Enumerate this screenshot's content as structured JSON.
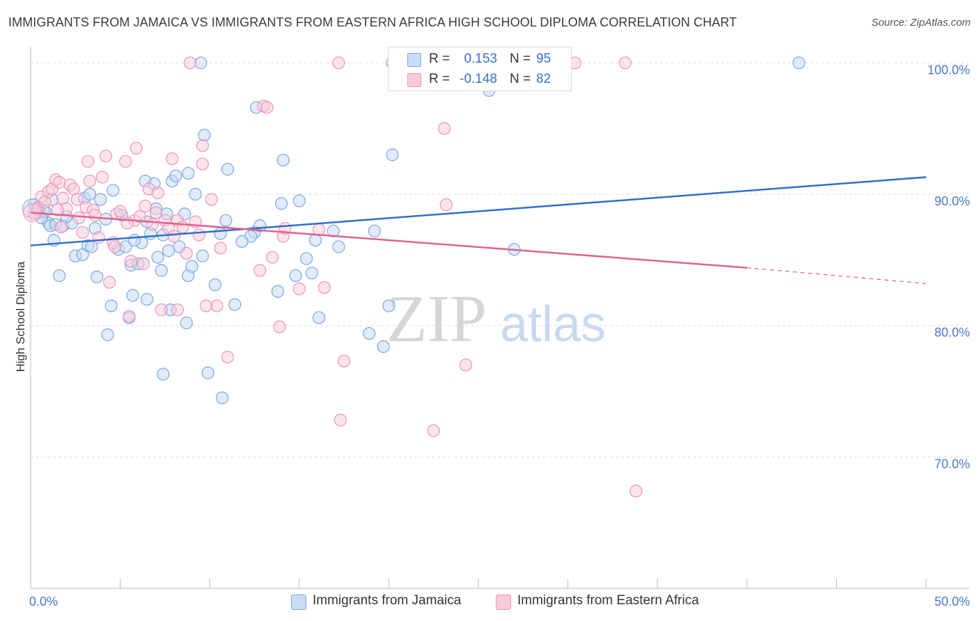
{
  "header": {
    "title": "IMMIGRANTS FROM JAMAICA VS IMMIGRANTS FROM EASTERN AFRICA HIGH SCHOOL DIPLOMA CORRELATION CHART",
    "source": "Source: ZipAtlas.com"
  },
  "legend": {
    "rows": [
      {
        "r_label": "R =",
        "r_value": "0.153",
        "n_label": "N =",
        "n_value": "95"
      },
      {
        "r_label": "R =",
        "r_value": "-0.148",
        "n_label": "N =",
        "n_value": "82"
      }
    ]
  },
  "bottom_legend": {
    "items": [
      {
        "label": "Immigrants from Jamaica"
      },
      {
        "label": "Immigrants from Eastern Africa"
      }
    ]
  },
  "watermark": {
    "zip": "ZIP",
    "atlas": "atlas"
  },
  "colors": {
    "jamaica": "#7aa7e0",
    "jamaica_fill": "#c9dbf5",
    "jamaica_line": "#2f6fc9",
    "eastern_africa": "#ef93b3",
    "eastern_africa_fill": "#f8cbdb",
    "eastern_africa_line": "#e0608f",
    "tick_label": "#4a77c5",
    "grid": "#dddddd"
  },
  "chart_data": {
    "type": "scatter",
    "title": "IMMIGRANTS FROM JAMAICA VS IMMIGRANTS FROM EASTERN AFRICA HIGH SCHOOL DIPLOMA CORRELATION CHART",
    "xlabel": "",
    "ylabel": "High School Diploma",
    "xlim": [
      0,
      50
    ],
    "ylim": [
      60,
      101.5
    ],
    "x_tick_labels": [
      "0.0%",
      "50.0%"
    ],
    "y_ticks": [
      70,
      80,
      90,
      100
    ],
    "y_tick_labels": [
      "70.0%",
      "80.0%",
      "90.0%",
      "100.0%"
    ],
    "grid": true,
    "legend_position": "top-center",
    "series": [
      {
        "name": "Immigrants from Jamaica",
        "r": 0.153,
        "n": 95,
        "trend": {
          "x": [
            0,
            50
          ],
          "y": [
            86.1,
            91.3
          ]
        },
        "points": [
          [
            0.2,
            89.2
          ],
          [
            0.3,
            88.9
          ],
          [
            0.4,
            89.0
          ],
          [
            0.5,
            88.6
          ],
          [
            0.7,
            88.8
          ],
          [
            0.8,
            88.7
          ],
          [
            1.0,
            87.8
          ],
          [
            1.1,
            87.6
          ],
          [
            1.3,
            86.5
          ],
          [
            1.4,
            87.7
          ],
          [
            1.6,
            83.8
          ],
          [
            1.8,
            87.6
          ],
          [
            2.3,
            87.8
          ],
          [
            2.5,
            85.3
          ],
          [
            2.9,
            85.4
          ],
          [
            3.0,
            89.7
          ],
          [
            3.2,
            86.1
          ],
          [
            3.3,
            90.0
          ],
          [
            3.6,
            87.4
          ],
          [
            3.7,
            83.7
          ],
          [
            3.9,
            89.6
          ],
          [
            4.2,
            88.1
          ],
          [
            4.3,
            79.3
          ],
          [
            4.5,
            81.5
          ],
          [
            4.6,
            90.3
          ],
          [
            4.9,
            85.8
          ],
          [
            5.1,
            88.4
          ],
          [
            5.3,
            86.0
          ],
          [
            5.5,
            80.6
          ],
          [
            5.6,
            84.6
          ],
          [
            5.7,
            82.3
          ],
          [
            6.0,
            84.7
          ],
          [
            6.2,
            86.3
          ],
          [
            6.4,
            91.0
          ],
          [
            6.5,
            87.9
          ],
          [
            6.5,
            82.0
          ],
          [
            6.9,
            90.8
          ],
          [
            7.0,
            88.9
          ],
          [
            7.1,
            85.2
          ],
          [
            7.3,
            84.2
          ],
          [
            7.4,
            86.9
          ],
          [
            7.4,
            76.3
          ],
          [
            7.6,
            88.5
          ],
          [
            7.7,
            85.7
          ],
          [
            7.8,
            81.2
          ],
          [
            7.9,
            91.0
          ],
          [
            8.1,
            91.4
          ],
          [
            8.6,
            88.5
          ],
          [
            8.7,
            80.2
          ],
          [
            8.8,
            83.8
          ],
          [
            8.8,
            91.6
          ],
          [
            9.2,
            90.0
          ],
          [
            9.5,
            100.0
          ],
          [
            9.6,
            85.3
          ],
          [
            9.7,
            94.5
          ],
          [
            9.9,
            76.4
          ],
          [
            10.3,
            83.1
          ],
          [
            10.6,
            87.0
          ],
          [
            10.7,
            74.5
          ],
          [
            10.9,
            88.0
          ],
          [
            11.0,
            91.9
          ],
          [
            11.4,
            81.6
          ],
          [
            12.5,
            87.1
          ],
          [
            12.6,
            96.6
          ],
          [
            12.8,
            87.6
          ],
          [
            13.8,
            82.6
          ],
          [
            14.0,
            89.3
          ],
          [
            14.1,
            92.6
          ],
          [
            14.8,
            83.8
          ],
          [
            15.0,
            89.5
          ],
          [
            15.4,
            85.1
          ],
          [
            15.7,
            84.0
          ],
          [
            16.1,
            80.6
          ],
          [
            16.9,
            87.2
          ],
          [
            17.2,
            86.0
          ],
          [
            18.9,
            79.4
          ],
          [
            19.2,
            87.2
          ],
          [
            19.7,
            78.4
          ],
          [
            20.0,
            81.5
          ],
          [
            20.2,
            93.0
          ],
          [
            20.2,
            100.0
          ],
          [
            25.6,
            97.9
          ],
          [
            27.0,
            85.8
          ],
          [
            42.9,
            100.0
          ],
          [
            1.2,
            89.6
          ],
          [
            2.0,
            88.3
          ],
          [
            5.8,
            86.5
          ],
          [
            8.3,
            86.0
          ],
          [
            12.3,
            86.8
          ],
          [
            0.6,
            88.2
          ],
          [
            3.4,
            86.0
          ],
          [
            6.7,
            87.0
          ],
          [
            9.0,
            84.5
          ],
          [
            11.8,
            86.4
          ],
          [
            15.9,
            86.5
          ]
        ]
      },
      {
        "name": "Immigrants from Eastern Africa",
        "r": -0.148,
        "n": 82,
        "trend": {
          "x": [
            0,
            40
          ],
          "y": [
            88.6,
            84.4
          ]
        },
        "trend_dashed": {
          "x": [
            40,
            50
          ],
          "y": [
            84.4,
            83.2
          ]
        },
        "points": [
          [
            0.2,
            88.5
          ],
          [
            0.4,
            88.9
          ],
          [
            0.6,
            89.8
          ],
          [
            0.8,
            89.4
          ],
          [
            1.0,
            90.2
          ],
          [
            1.2,
            90.4
          ],
          [
            1.4,
            91.1
          ],
          [
            1.6,
            90.9
          ],
          [
            1.8,
            89.7
          ],
          [
            2.0,
            88.9
          ],
          [
            2.2,
            90.7
          ],
          [
            2.4,
            90.4
          ],
          [
            2.7,
            88.2
          ],
          [
            2.9,
            87.1
          ],
          [
            3.1,
            89.0
          ],
          [
            3.2,
            92.5
          ],
          [
            3.3,
            91.0
          ],
          [
            3.5,
            88.8
          ],
          [
            3.8,
            86.7
          ],
          [
            4.0,
            91.3
          ],
          [
            4.2,
            92.9
          ],
          [
            4.4,
            83.3
          ],
          [
            4.6,
            86.3
          ],
          [
            4.8,
            88.5
          ],
          [
            5.0,
            88.7
          ],
          [
            5.3,
            92.5
          ],
          [
            5.5,
            80.7
          ],
          [
            5.6,
            84.9
          ],
          [
            5.8,
            88.0
          ],
          [
            5.9,
            93.5
          ],
          [
            6.3,
            84.7
          ],
          [
            6.4,
            89.1
          ],
          [
            6.6,
            90.4
          ],
          [
            6.8,
            87.7
          ],
          [
            7.1,
            90.1
          ],
          [
            7.3,
            81.2
          ],
          [
            7.5,
            88.0
          ],
          [
            7.7,
            87.4
          ],
          [
            7.9,
            92.7
          ],
          [
            8.2,
            88.0
          ],
          [
            8.2,
            81.2
          ],
          [
            8.5,
            87.5
          ],
          [
            8.7,
            85.5
          ],
          [
            8.9,
            100.0
          ],
          [
            9.4,
            86.9
          ],
          [
            9.6,
            92.3
          ],
          [
            9.6,
            93.7
          ],
          [
            9.8,
            81.5
          ],
          [
            10.1,
            89.6
          ],
          [
            10.4,
            81.5
          ],
          [
            10.6,
            85.9
          ],
          [
            11.0,
            77.6
          ],
          [
            12.8,
            84.2
          ],
          [
            13.0,
            96.7
          ],
          [
            13.2,
            96.6
          ],
          [
            13.5,
            85.2
          ],
          [
            13.9,
            79.9
          ],
          [
            14.1,
            86.8
          ],
          [
            14.2,
            87.4
          ],
          [
            15.0,
            82.8
          ],
          [
            16.1,
            87.3
          ],
          [
            16.4,
            82.9
          ],
          [
            17.2,
            100.0
          ],
          [
            17.5,
            77.3
          ],
          [
            17.3,
            72.8
          ],
          [
            22.5,
            72.0
          ],
          [
            23.1,
            95.0
          ],
          [
            23.2,
            89.2
          ],
          [
            24.3,
            77.0
          ],
          [
            30.4,
            100.0
          ],
          [
            33.2,
            100.0
          ],
          [
            33.8,
            67.4
          ],
          [
            1.5,
            88.8
          ],
          [
            2.6,
            89.6
          ],
          [
            4.7,
            86.0
          ],
          [
            6.1,
            88.3
          ],
          [
            7.0,
            88.6
          ],
          [
            9.2,
            87.9
          ],
          [
            1.7,
            87.5
          ],
          [
            3.6,
            88.4
          ],
          [
            5.4,
            87.8
          ],
          [
            8.0,
            86.8
          ]
        ]
      }
    ]
  }
}
